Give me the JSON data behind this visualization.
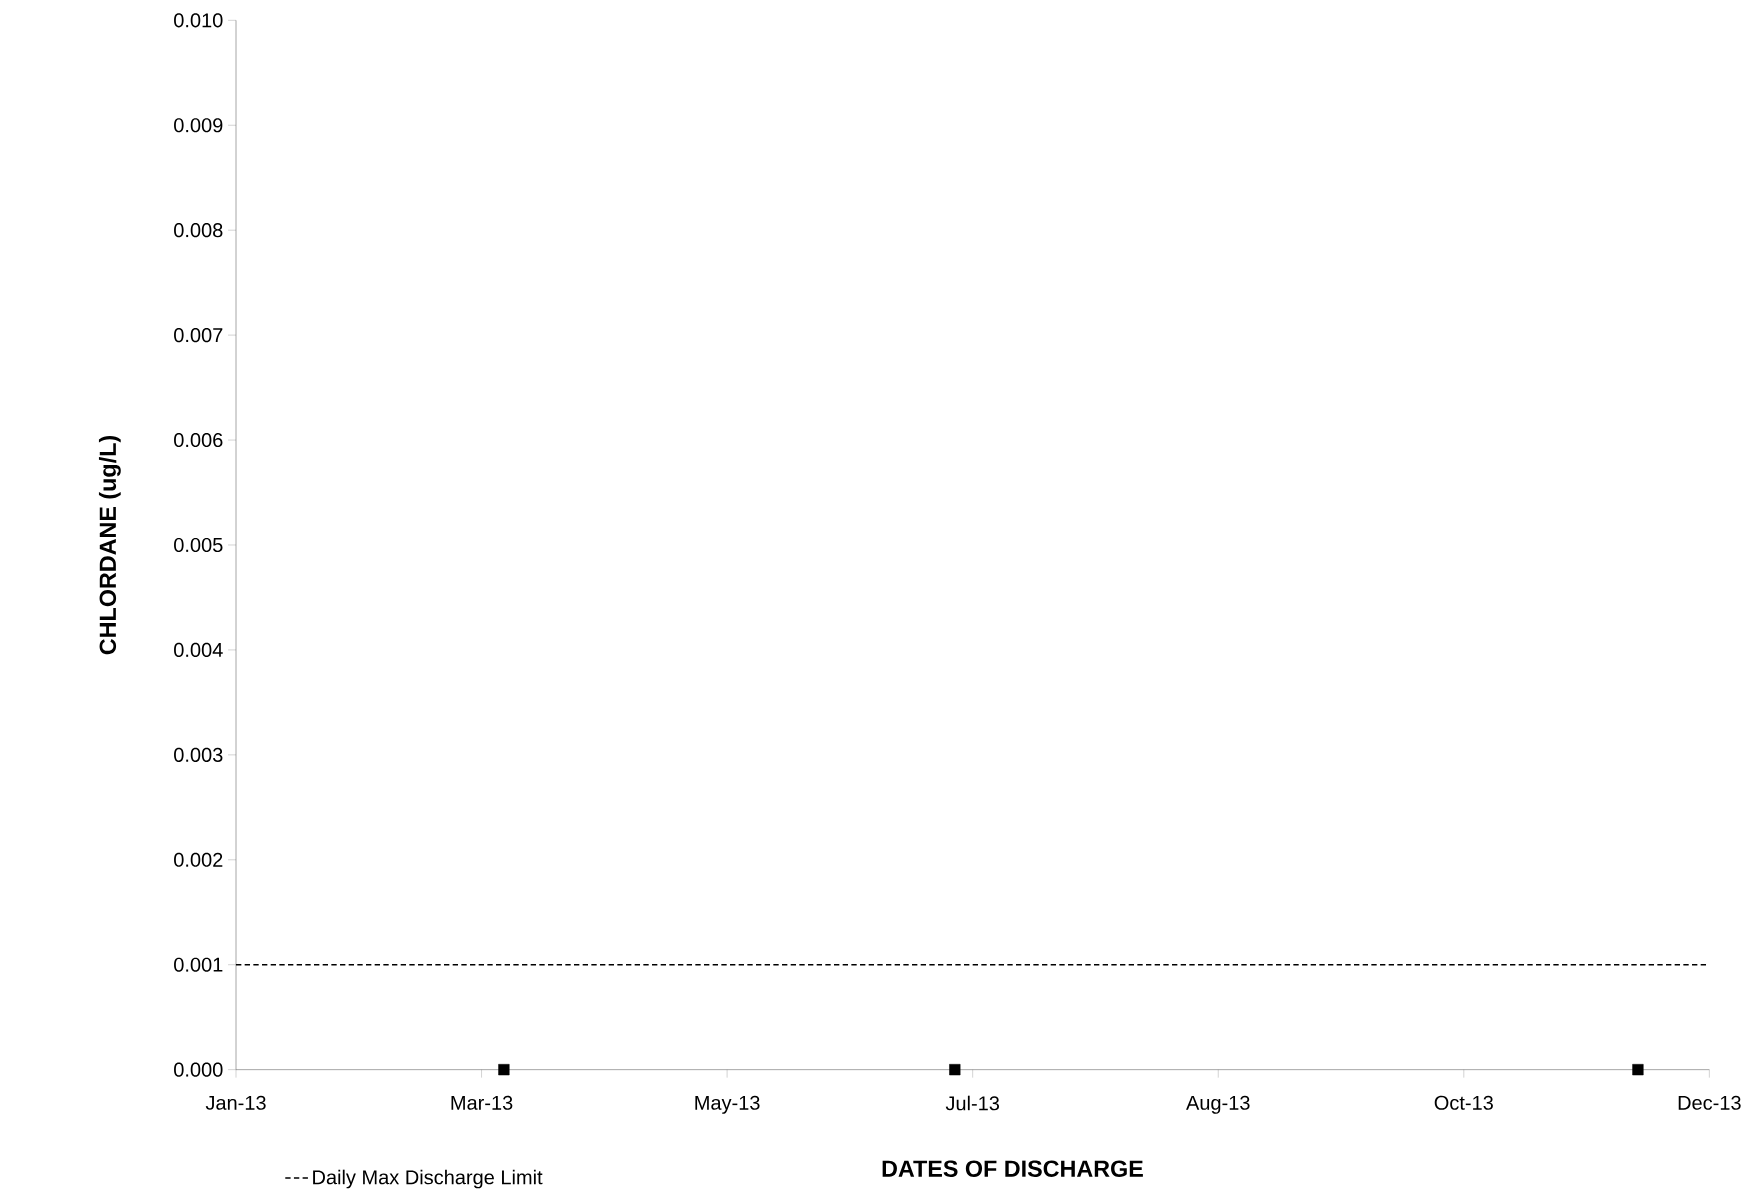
{
  "chart_data": {
    "type": "scatter",
    "xlabel": "DATES OF DISCHARGE",
    "ylabel": "CHLORDANE (ug/L)",
    "x": [
      "2013-03-21",
      "2013-06-30",
      "2013-11-30"
    ],
    "series": [
      {
        "color": "#000000",
        "values": [
          0,
          0,
          0
        ]
      }
    ],
    "marker": "square",
    "xlim": [
      "2013-01-20",
      "2013-12-16"
    ],
    "xticks": [
      {
        "value": "2013-01-20",
        "label": "Jan-13"
      },
      {
        "value": "2013-03-16",
        "label": "Mar-13"
      },
      {
        "value": "2013-05-10",
        "label": "May-13"
      },
      {
        "value": "2013-07-04",
        "label": "Jul-13"
      },
      {
        "value": "2013-08-28",
        "label": "Aug-13"
      },
      {
        "value": "2013-10-22",
        "label": "Oct-13"
      },
      {
        "value": "2013-12-16",
        "label": "Dec-13"
      }
    ],
    "ylim": [
      0,
      0.01
    ],
    "yticks": [
      {
        "value": 0,
        "label": "0.000"
      },
      {
        "value": 0.001,
        "label": "0.001"
      },
      {
        "value": 0.002,
        "label": "0.002"
      },
      {
        "value": 0.003,
        "label": "0.003"
      },
      {
        "value": 0.004,
        "label": "0.004"
      },
      {
        "value": 0.005,
        "label": "0.005"
      },
      {
        "value": 0.006,
        "label": "0.006"
      },
      {
        "value": 0.007,
        "label": "0.007"
      },
      {
        "value": 0.008,
        "label": "0.008"
      },
      {
        "value": 0.009,
        "label": "0.009"
      },
      {
        "value": 0.01,
        "label": "0.010"
      }
    ],
    "ref_lines": [
      {
        "axis": "y",
        "value": 0.001,
        "label": "Daily Max Discharge Limit",
        "color": "#000000",
        "line_style": "dashed"
      }
    ],
    "legend": "bottom left",
    "grid": false
  }
}
